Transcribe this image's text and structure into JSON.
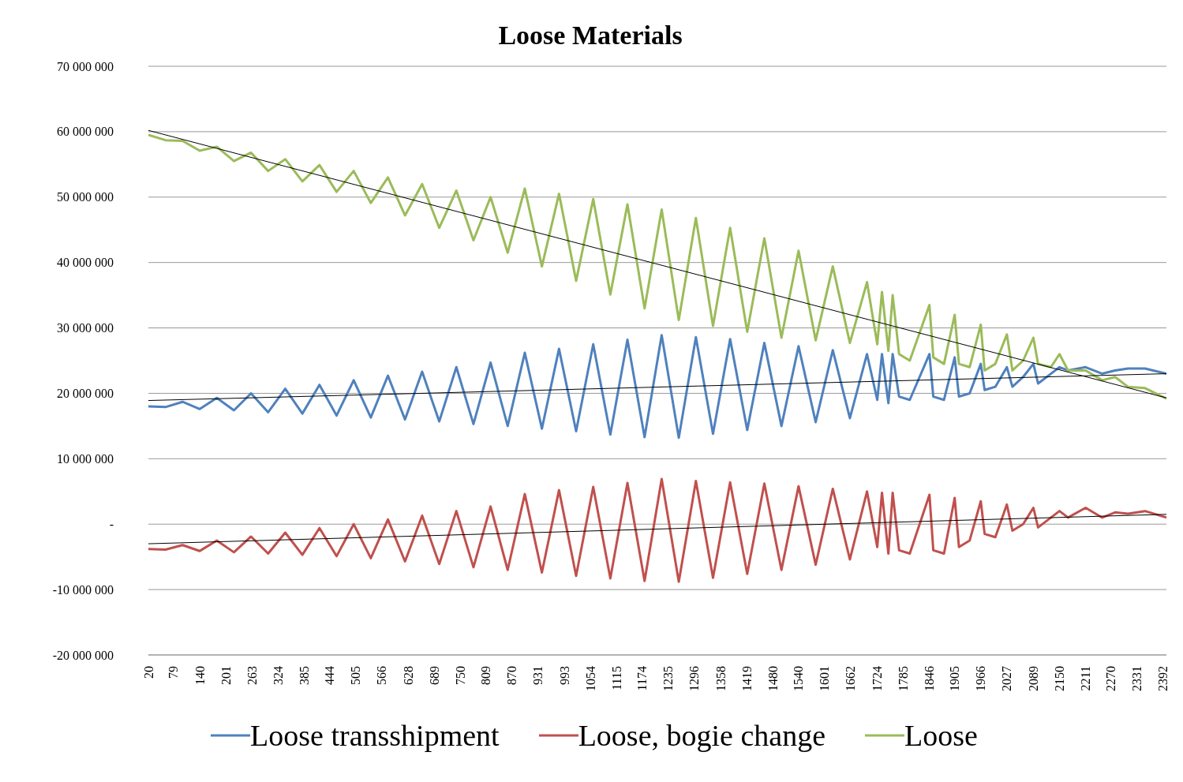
{
  "chart_data": {
    "type": "line",
    "title": "Loose Materials",
    "xlim": [
      20,
      2400
    ],
    "xticks": [
      20,
      79,
      140,
      201,
      263,
      324,
      385,
      444,
      505,
      566,
      628,
      689,
      750,
      809,
      870,
      931,
      993,
      1054,
      1115,
      1174,
      1235,
      1296,
      1358,
      1419,
      1480,
      1540,
      1601,
      1662,
      1724,
      1785,
      1846,
      1905,
      1966,
      2027,
      2089,
      2150,
      2211,
      2270,
      2331,
      2392
    ],
    "ylim": [
      -20000000,
      70000000
    ],
    "yticks": [
      {
        "value": -20000000,
        "label": "-20 000 000"
      },
      {
        "value": -10000000,
        "label": "-10 000 000"
      },
      {
        "value": 0,
        "label": "-"
      },
      {
        "value": 10000000,
        "label": "10 000 000"
      },
      {
        "value": 20000000,
        "label": "20 000 000"
      },
      {
        "value": 30000000,
        "label": "30 000 000"
      },
      {
        "value": 40000000,
        "label": "40 000 000"
      },
      {
        "value": 50000000,
        "label": "50 000 000"
      },
      {
        "value": 60000000,
        "label": "60 000 000"
      },
      {
        "value": 70000000,
        "label": "70 000 000"
      }
    ],
    "grid": "y",
    "legend": "bottom",
    "marker": "none",
    "line_style": "solid",
    "series": [
      {
        "name": "Loose transshipment",
        "color": "#4f81bd",
        "x": [
          20,
          60,
          100,
          140,
          180,
          220,
          260,
          300,
          340,
          380,
          420,
          460,
          500,
          540,
          580,
          620,
          660,
          700,
          740,
          780,
          820,
          860,
          900,
          940,
          980,
          1020,
          1060,
          1100,
          1140,
          1180,
          1220,
          1260,
          1300,
          1340,
          1380,
          1420,
          1460,
          1500,
          1540,
          1580,
          1620,
          1660,
          1700,
          1724,
          1735,
          1750,
          1760,
          1775,
          1800,
          1846,
          1855,
          1880,
          1905,
          1915,
          1940,
          1966,
          1975,
          2000,
          2027,
          2040,
          2065,
          2089,
          2100,
          2130,
          2150,
          2170,
          2211,
          2250,
          2280,
          2310,
          2350,
          2400
        ],
        "values": [
          18000000,
          17900000,
          18700000,
          17600000,
          19300000,
          17400000,
          20000000,
          17100000,
          20700000,
          16900000,
          21300000,
          16600000,
          22000000,
          16300000,
          22700000,
          16000000,
          23300000,
          15700000,
          24000000,
          15300000,
          24700000,
          15000000,
          26200000,
          14600000,
          26800000,
          14200000,
          27500000,
          13700000,
          28200000,
          13300000,
          28900000,
          13200000,
          28600000,
          13800000,
          28300000,
          14400000,
          27700000,
          15000000,
          27200000,
          15600000,
          26600000,
          16200000,
          26000000,
          19000000,
          26000000,
          18500000,
          26000000,
          19500000,
          19000000,
          26000000,
          19500000,
          19000000,
          25500000,
          19500000,
          20000000,
          24500000,
          20500000,
          21000000,
          24000000,
          21000000,
          22500000,
          24500000,
          21500000,
          23000000,
          24000000,
          23500000,
          24000000,
          23000000,
          23500000,
          23800000,
          23800000,
          23000000
        ]
      },
      {
        "name": "Loose, bogie change",
        "color": "#c0504d",
        "x": [
          20,
          60,
          100,
          140,
          180,
          220,
          260,
          300,
          340,
          380,
          420,
          460,
          500,
          540,
          580,
          620,
          660,
          700,
          740,
          780,
          820,
          860,
          900,
          940,
          980,
          1020,
          1060,
          1100,
          1140,
          1180,
          1220,
          1260,
          1300,
          1340,
          1380,
          1420,
          1460,
          1500,
          1540,
          1580,
          1620,
          1660,
          1700,
          1724,
          1735,
          1750,
          1760,
          1775,
          1800,
          1846,
          1855,
          1880,
          1905,
          1915,
          1940,
          1966,
          1975,
          2000,
          2027,
          2040,
          2065,
          2089,
          2100,
          2130,
          2150,
          2170,
          2211,
          2250,
          2280,
          2310,
          2350,
          2400
        ],
        "values": [
          -3800000,
          -3900000,
          -3200000,
          -4100000,
          -2500000,
          -4300000,
          -1900000,
          -4500000,
          -1300000,
          -4700000,
          -600000,
          -4900000,
          0,
          -5200000,
          700000,
          -5700000,
          1300000,
          -6100000,
          2000000,
          -6600000,
          2700000,
          -7000000,
          4600000,
          -7400000,
          5200000,
          -7900000,
          5700000,
          -8300000,
          6300000,
          -8700000,
          6900000,
          -8800000,
          6600000,
          -8200000,
          6400000,
          -7600000,
          6200000,
          -7000000,
          5800000,
          -6200000,
          5400000,
          -5400000,
          5000000,
          -3500000,
          4800000,
          -4500000,
          4800000,
          -4000000,
          -4500000,
          4500000,
          -4000000,
          -4500000,
          4000000,
          -3500000,
          -2500000,
          3500000,
          -1500000,
          -2000000,
          3000000,
          -1000000,
          0,
          2500000,
          -500000,
          1000000,
          2000000,
          1000000,
          2500000,
          1000000,
          1800000,
          1600000,
          2000000,
          1000000
        ]
      },
      {
        "name": "Loose",
        "color": "#9bbb59",
        "x": [
          20,
          60,
          100,
          140,
          180,
          220,
          260,
          300,
          340,
          380,
          420,
          460,
          500,
          540,
          580,
          620,
          660,
          700,
          740,
          780,
          820,
          860,
          900,
          940,
          980,
          1020,
          1060,
          1100,
          1140,
          1180,
          1220,
          1260,
          1300,
          1340,
          1380,
          1420,
          1460,
          1500,
          1540,
          1580,
          1620,
          1660,
          1700,
          1724,
          1735,
          1750,
          1760,
          1775,
          1800,
          1846,
          1855,
          1880,
          1905,
          1915,
          1940,
          1966,
          1975,
          2000,
          2027,
          2040,
          2065,
          2089,
          2100,
          2130,
          2150,
          2170,
          2211,
          2250,
          2280,
          2310,
          2350,
          2400
        ],
        "values": [
          59500000,
          58700000,
          58600000,
          57100000,
          57700000,
          55500000,
          56800000,
          54000000,
          55800000,
          52400000,
          54900000,
          50800000,
          54000000,
          49100000,
          53000000,
          47200000,
          52000000,
          45300000,
          51000000,
          43400000,
          50000000,
          41500000,
          51300000,
          39400000,
          50500000,
          37200000,
          49700000,
          35100000,
          48900000,
          33000000,
          48100000,
          31200000,
          46800000,
          30300000,
          45300000,
          29400000,
          43700000,
          28500000,
          41800000,
          28100000,
          39400000,
          27700000,
          37000000,
          27500000,
          35500000,
          26500000,
          35000000,
          26000000,
          25000000,
          33500000,
          25500000,
          24500000,
          32000000,
          24500000,
          24000000,
          30500000,
          23500000,
          24500000,
          29000000,
          23500000,
          25000000,
          28500000,
          24500000,
          24000000,
          26000000,
          23500000,
          23500000,
          22000000,
          22500000,
          21000000,
          20800000,
          19200000
        ]
      },
      {
        "type": "line",
        "color": "#000000",
        "x": [
          20,
          2400
        ],
        "values": [
          18900000,
          23000000
        ]
      },
      {
        "type": "line",
        "color": "#000000",
        "x": [
          20,
          2400
        ],
        "values": [
          -3000000,
          1500000
        ]
      },
      {
        "type": "line",
        "color": "#000000",
        "x": [
          20,
          2400
        ],
        "values": [
          60200000,
          19300000
        ]
      }
    ]
  }
}
